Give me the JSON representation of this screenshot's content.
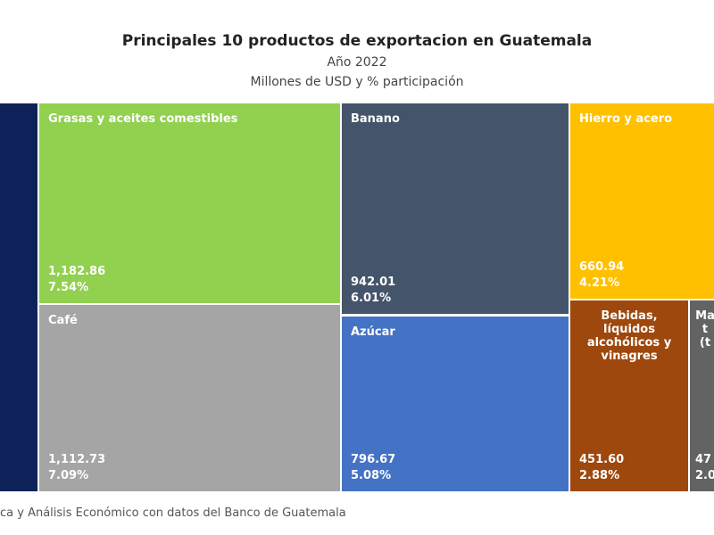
{
  "title": "Principales 10 productos de exportacion en Guatemala",
  "subtitle1": "Año 2022",
  "subtitle2": "Millones de USD y % participación",
  "source": "ca y Análisis Económico con datos del Banco de Guatemala",
  "chart_data": {
    "type": "treemap",
    "items": [
      {
        "label": "",
        "value": null,
        "share": "",
        "color": "#0e2259"
      },
      {
        "label": "Grasas y aceites comestibles",
        "value": "1,182.86",
        "share": "7.54%",
        "color": "#92d050"
      },
      {
        "label": "Café",
        "value": "1,112.73",
        "share": "7.09%",
        "color": "#a5a5a5"
      },
      {
        "label": "Banano",
        "value": "942.01",
        "share": "6.01%",
        "color": "#44546a"
      },
      {
        "label": "Azúcar",
        "value": "796.67",
        "share": "5.08%",
        "color": "#4472c4"
      },
      {
        "label": "Hierro y acero",
        "value": "660.94",
        "share": "4.21%",
        "color": "#ffc000"
      },
      {
        "label": "Bebidas, líquidos alcohólicos y vinagres",
        "value": "451.60",
        "share": "2.88%",
        "color": "#9e480e"
      },
      {
        "label": "Ma t (t",
        "value": "47",
        "share": "2.0",
        "color": "#636363"
      }
    ]
  }
}
